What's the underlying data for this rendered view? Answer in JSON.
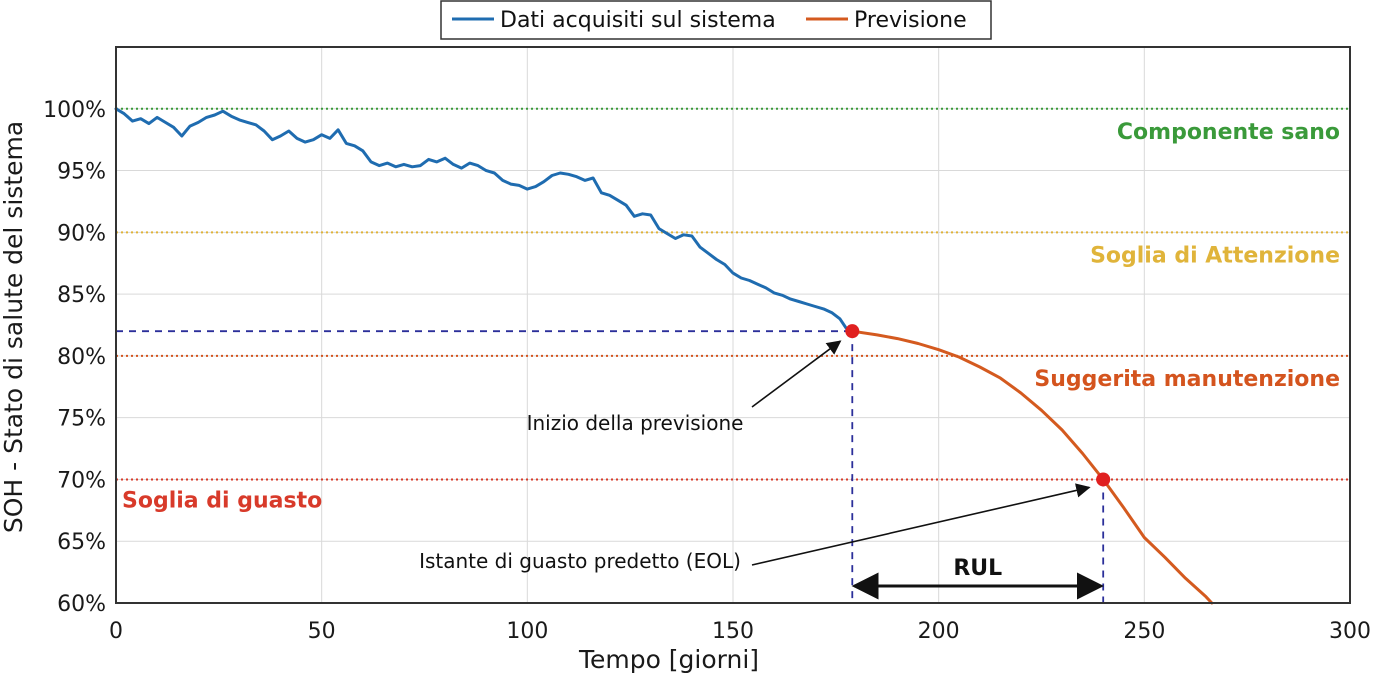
{
  "chart_data": {
    "type": "line",
    "xlabel": "Tempo [giorni]",
    "ylabel": "SOH - Stato di salute del sistema",
    "xlim": [
      0,
      300
    ],
    "ylim": [
      60,
      105
    ],
    "xticks": [
      0,
      50,
      100,
      150,
      200,
      250,
      300
    ],
    "xtick_labels": [
      "0",
      "50",
      "100",
      "150",
      "200",
      "250",
      "300"
    ],
    "yticks": [
      60,
      65,
      70,
      75,
      80,
      85,
      90,
      95,
      100
    ],
    "ytick_labels": [
      "60%",
      "65%",
      "70%",
      "75%",
      "80%",
      "85%",
      "90%",
      "95%",
      "100%"
    ],
    "grid": true,
    "legend": {
      "position": "top-center",
      "entries": [
        "Dati acquisiti sul sistema",
        "Previsione"
      ]
    },
    "series": [
      {
        "name": "Dati acquisiti sul sistema",
        "color": "#1f6cb0",
        "x": [
          0,
          2,
          4,
          6,
          8,
          10,
          12,
          14,
          16,
          18,
          20,
          22,
          24,
          26,
          28,
          30,
          32,
          34,
          36,
          38,
          40,
          42,
          44,
          46,
          48,
          50,
          52,
          54,
          56,
          58,
          60,
          62,
          64,
          66,
          68,
          70,
          72,
          74,
          76,
          78,
          80,
          82,
          84,
          86,
          88,
          90,
          92,
          94,
          96,
          98,
          100,
          102,
          104,
          106,
          108,
          110,
          112,
          114,
          116,
          118,
          120,
          122,
          124,
          126,
          128,
          130,
          132,
          134,
          136,
          138,
          140,
          142,
          144,
          146,
          148,
          150,
          152,
          154,
          156,
          158,
          160,
          162,
          164,
          166,
          168,
          170,
          172,
          174,
          176,
          178
        ],
        "y": [
          100.0,
          99.6,
          99.0,
          99.2,
          98.8,
          99.3,
          98.9,
          98.5,
          97.8,
          98.6,
          98.9,
          99.3,
          99.5,
          99.8,
          99.4,
          99.1,
          98.9,
          98.7,
          98.2,
          97.5,
          97.8,
          98.2,
          97.6,
          97.3,
          97.5,
          97.9,
          97.6,
          98.3,
          97.2,
          97.0,
          96.6,
          95.7,
          95.4,
          95.6,
          95.3,
          95.5,
          95.3,
          95.4,
          95.9,
          95.7,
          96.0,
          95.5,
          95.2,
          95.6,
          95.4,
          95.0,
          94.8,
          94.2,
          93.9,
          93.8,
          93.5,
          93.7,
          94.1,
          94.6,
          94.8,
          94.7,
          94.5,
          94.2,
          94.4,
          93.2,
          93.0,
          92.6,
          92.2,
          91.3,
          91.5,
          91.4,
          90.3,
          89.9,
          89.5,
          89.8,
          89.7,
          88.8,
          88.3,
          87.8,
          87.4,
          86.7,
          86.3,
          86.1,
          85.8,
          85.5,
          85.1,
          84.9,
          84.6,
          84.4,
          84.2,
          84.0,
          83.8,
          83.5,
          83.0,
          82.0
        ]
      },
      {
        "name": "Previsione",
        "color": "#d45a1f",
        "x": [
          179,
          185,
          190,
          195,
          200,
          205,
          210,
          215,
          220,
          225,
          230,
          235,
          240,
          245,
          250,
          255,
          260,
          265,
          266.4
        ],
        "y": [
          82.0,
          81.7,
          81.4,
          81.0,
          80.5,
          79.9,
          79.1,
          78.2,
          77.0,
          75.6,
          74.0,
          72.1,
          70.0,
          67.7,
          65.3,
          63.7,
          62.0,
          60.5,
          60.0
        ]
      }
    ],
    "thresholds": [
      {
        "label": "Componente sano",
        "y": 100,
        "color": "#3a9a3a"
      },
      {
        "label": "Soglia di Attenzione",
        "y": 90,
        "color": "#e0b43a"
      },
      {
        "label": "Suggerita manutenzione",
        "y": 80,
        "color": "#d4541e"
      },
      {
        "label": "Soglia di guasto",
        "y": 70,
        "color": "#d83a2a"
      }
    ],
    "markers": [
      {
        "x": 179,
        "y": 82,
        "color": "#e02020"
      },
      {
        "x": 240,
        "y": 70,
        "color": "#e02020"
      }
    ],
    "annotations": [
      {
        "text": "Inizio della previsione",
        "target_x": 179,
        "target_y": 82
      },
      {
        "text": "Istante di guasto predetto (EOL)",
        "target_x": 240,
        "target_y": 70
      }
    ],
    "rul": {
      "label": "RUL",
      "from": 179,
      "to": 240
    }
  }
}
